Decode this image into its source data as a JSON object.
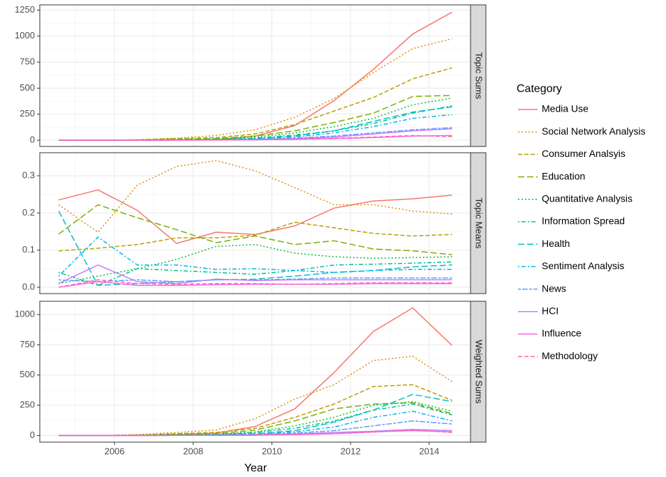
{
  "chart_data": {
    "type": "line",
    "x_label": "Year",
    "x": [
      2004.58,
      2005.58,
      2006.58,
      2007.58,
      2008.58,
      2009.58,
      2010.58,
      2011.58,
      2012.58,
      2013.58,
      2014.58
    ],
    "xlim": [
      2004.1,
      2015.05
    ],
    "xticks": [
      2006,
      2008,
      2010,
      2012,
      2014
    ],
    "grid": true,
    "legend_title": "Category",
    "legend_position": "right",
    "series": [
      {
        "name": "Media Use",
        "color": "#F8766D",
        "dash": "none"
      },
      {
        "name": "Social Network Analysis",
        "color": "#DE8C00",
        "dash": "2,3"
      },
      {
        "name": "Consumer Analsyis",
        "color": "#B79F00",
        "dash": "6,3"
      },
      {
        "name": "Education",
        "color": "#7CAE00",
        "dash": "9,4"
      },
      {
        "name": "Quantitative Analysis",
        "color": "#00BA38",
        "dash": "2,3"
      },
      {
        "name": "Information Spread",
        "color": "#00C08B",
        "dash": "2,3,6,3"
      },
      {
        "name": "Health",
        "color": "#00BFC4",
        "dash": "9,4"
      },
      {
        "name": "Sentiment Analysis",
        "color": "#00B4F0",
        "dash": "2,3,6,3"
      },
      {
        "name": "News",
        "color": "#619CFF",
        "dash": "4,2,8,2"
      },
      {
        "name": "HCI",
        "color": "#C77CFF",
        "dash": "none"
      },
      {
        "name": "Influence",
        "color": "#F564E3",
        "dash": "none"
      },
      {
        "name": "Methodology",
        "color": "#FF64B0",
        "dash": "6,3"
      }
    ],
    "panels": [
      {
        "label": "Topic Sums",
        "ylim": [
          -60,
          1300
        ],
        "yticks": [
          0,
          250,
          500,
          750,
          1000,
          1250
        ],
        "values": [
          [
            0,
            0,
            0,
            2,
            5,
            40,
            140,
            380,
            680,
            1020,
            1230
          ],
          [
            0,
            0,
            5,
            20,
            45,
            100,
            220,
            400,
            650,
            880,
            975
          ],
          [
            0,
            0,
            3,
            15,
            25,
            60,
            150,
            280,
            410,
            590,
            695
          ],
          [
            0,
            0,
            2,
            8,
            15,
            40,
            90,
            170,
            260,
            420,
            430
          ],
          [
            0,
            0,
            1,
            5,
            10,
            30,
            70,
            130,
            210,
            340,
            405
          ],
          [
            0,
            0,
            1,
            3,
            6,
            20,
            50,
            90,
            160,
            260,
            330
          ],
          [
            0,
            0,
            1,
            2,
            5,
            15,
            40,
            90,
            180,
            270,
            320
          ],
          [
            0,
            0,
            0,
            2,
            4,
            12,
            30,
            70,
            130,
            210,
            245
          ],
          [
            0,
            0,
            0,
            1,
            3,
            8,
            20,
            40,
            70,
            100,
            120
          ],
          [
            0,
            0,
            0,
            1,
            2,
            6,
            15,
            30,
            60,
            90,
            110
          ],
          [
            0,
            0,
            0,
            1,
            2,
            4,
            8,
            15,
            25,
            40,
            45
          ],
          [
            0,
            0,
            0,
            1,
            2,
            5,
            10,
            18,
            30,
            45,
            35
          ]
        ]
      },
      {
        "label": "Topic Means",
        "ylim": [
          -0.017,
          0.362
        ],
        "yticks": [
          {
            "value": 0,
            "label": "0.0"
          },
          0.1,
          0.2,
          0.3
        ],
        "values": [
          [
            0.235,
            0.262,
            0.207,
            0.118,
            0.148,
            0.142,
            0.165,
            0.213,
            0.232,
            0.238,
            0.248
          ],
          [
            0.222,
            0.148,
            0.275,
            0.325,
            0.341,
            0.313,
            0.268,
            0.222,
            0.222,
            0.205,
            0.197
          ],
          [
            0.098,
            0.105,
            0.115,
            0.133,
            0.133,
            0.14,
            0.175,
            0.16,
            0.145,
            0.138,
            0.142
          ],
          [
            0.143,
            0.222,
            0.187,
            0.155,
            0.12,
            0.138,
            0.115,
            0.125,
            0.103,
            0.098,
            0.088
          ],
          [
            0.01,
            0.03,
            0.05,
            0.075,
            0.11,
            0.115,
            0.092,
            0.082,
            0.078,
            0.08,
            0.082
          ],
          [
            0.04,
            0.005,
            0.05,
            0.045,
            0.04,
            0.035,
            0.045,
            0.06,
            0.062,
            0.065,
            0.068
          ],
          [
            0.205,
            0.005,
            0.01,
            0.015,
            0.02,
            0.022,
            0.03,
            0.04,
            0.045,
            0.055,
            0.06
          ],
          [
            0.03,
            0.135,
            0.06,
            0.06,
            0.048,
            0.05,
            0.045,
            0.04,
            0.045,
            0.048,
            0.048
          ],
          [
            0.02,
            0.015,
            0.02,
            0.015,
            0.02,
            0.02,
            0.022,
            0.025,
            0.025,
            0.025,
            0.025
          ],
          [
            0.01,
            0.06,
            0.015,
            0.01,
            0.022,
            0.018,
            0.02,
            0.02,
            0.02,
            0.02,
            0.02
          ],
          [
            0,
            0.015,
            0.005,
            0.005,
            0.007,
            0.008,
            0.008,
            0.008,
            0.01,
            0.01,
            0.01
          ],
          [
            0,
            0.02,
            0.01,
            0.008,
            0.01,
            0.01,
            0.008,
            0.01,
            0.012,
            0.012,
            0.012
          ]
        ]
      },
      {
        "label": "Weighted Sums",
        "ylim": [
          -55,
          1110
        ],
        "yticks": [
          0,
          250,
          500,
          750,
          1000
        ],
        "values": [
          [
            0,
            0,
            2,
            5,
            20,
            75,
            220,
            520,
            860,
            1055,
            745
          ],
          [
            0,
            0,
            8,
            25,
            45,
            140,
            300,
            420,
            620,
            655,
            445
          ],
          [
            0,
            0,
            3,
            15,
            25,
            60,
            150,
            260,
            405,
            420,
            290
          ],
          [
            0,
            0,
            2,
            10,
            15,
            45,
            120,
            220,
            260,
            270,
            180
          ],
          [
            0,
            0,
            1,
            5,
            10,
            30,
            80,
            150,
            250,
            280,
            200
          ],
          [
            0,
            0,
            1,
            3,
            6,
            25,
            60,
            120,
            210,
            260,
            170
          ],
          [
            0,
            0,
            1,
            2,
            5,
            15,
            40,
            110,
            210,
            340,
            280
          ],
          [
            0,
            0,
            1,
            2,
            4,
            12,
            30,
            70,
            150,
            200,
            120
          ],
          [
            0,
            0,
            0,
            1,
            3,
            8,
            20,
            40,
            80,
            120,
            95
          ],
          [
            0,
            0,
            0,
            1,
            2,
            5,
            12,
            25,
            35,
            50,
            40
          ],
          [
            0,
            0,
            0,
            1,
            1,
            3,
            8,
            15,
            30,
            40,
            30
          ],
          [
            0,
            0,
            0,
            1,
            1,
            3,
            8,
            15,
            28,
            45,
            25
          ]
        ]
      }
    ]
  }
}
